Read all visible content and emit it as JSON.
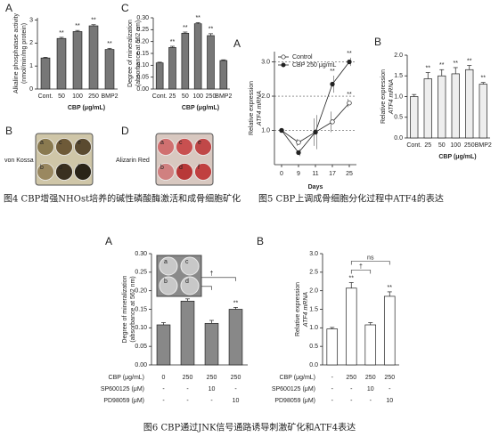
{
  "chart_data": [
    {
      "type": "bar",
      "panel": "A",
      "ylabel": [
        "Alkaline phosphatase activity",
        "(nmol/min/mg protein)"
      ],
      "xlabel": "CBP (μg/mL)",
      "categories": [
        "Cont.",
        "50",
        "100",
        "250",
        "BMP2"
      ],
      "values": [
        1.35,
        2.2,
        2.5,
        2.75,
        1.72
      ],
      "errors": [
        0.03,
        0.05,
        0.05,
        0.05,
        0.05
      ],
      "annotations": [
        null,
        "**",
        "**",
        "**",
        "**"
      ],
      "color": "#777777",
      "ylim": [
        0,
        3.1
      ],
      "yticks": [
        0,
        1,
        2,
        3
      ]
    },
    {
      "type": "bar",
      "panel": "C",
      "ylabel": [
        "Degree of mineralization",
        "(absorbance at 562 nm)"
      ],
      "xlabel": "CBP (μg/mL)",
      "categories": [
        "Cont.",
        "25",
        "50",
        "100",
        "250",
        "BMP2"
      ],
      "values": [
        0.11,
        0.175,
        0.235,
        0.275,
        0.225,
        0.12
      ],
      "errors": [
        0.003,
        0.005,
        0.005,
        0.005,
        0.008,
        0.003
      ],
      "annotations": [
        null,
        "**",
        "**",
        "**",
        "**",
        null
      ],
      "color": "#777777",
      "ylim": [
        0,
        0.3
      ],
      "yticks": [
        {
          "value": 0,
          "label": "0.00"
        },
        {
          "value": 0.05,
          "label": "0.05"
        },
        {
          "value": 0.1,
          "label": "0.10"
        },
        {
          "value": 0.15,
          "label": "0.15"
        },
        {
          "value": 0.2,
          "label": "0.20"
        },
        {
          "value": 0.25,
          "label": "0.25"
        },
        {
          "value": 0.3,
          "label": "0.30"
        }
      ]
    },
    {
      "type": "line",
      "panel": "A",
      "ylabel": [
        "Relative expression",
        "ATF4 mRNA"
      ],
      "xlabel": "Days",
      "categories": [
        "0",
        "9",
        "11",
        "17",
        "25"
      ],
      "legend": "upper left",
      "grid": true,
      "series": [
        {
          "name": "Control",
          "color": "#ffffff",
          "values": [
            1.0,
            0.65,
            0.95,
            1.25,
            1.8
          ],
          "errors": [
            0.05,
            0.1,
            0.4,
            0.3,
            0.12
          ],
          "annotations": [
            null,
            null,
            null,
            null,
            "**"
          ]
        },
        {
          "name": "CBP 250 μg/mL",
          "color": "#222222",
          "values": [
            1.0,
            0.35,
            0.95,
            2.35,
            3.0
          ],
          "errors": [
            0.05,
            0.1,
            0.5,
            0.25,
            0.12
          ],
          "annotations": [
            null,
            null,
            null,
            "**",
            "**"
          ]
        }
      ],
      "ylim": [
        0,
        3.3
      ],
      "yticks": [
        {
          "value": 1,
          "label": "1.0"
        },
        {
          "value": 2,
          "label": "2.0"
        },
        {
          "value": 3,
          "label": "3.0"
        }
      ]
    },
    {
      "type": "bar",
      "panel": "B",
      "ylabel": [
        "Relative expression",
        "ATF4 mRNA"
      ],
      "xlabel": "CBP (μg/mL)",
      "categories": [
        "Cont.",
        "25",
        "50",
        "100",
        "250",
        "BMP2"
      ],
      "values": [
        1.0,
        1.43,
        1.5,
        1.55,
        1.65,
        1.3
      ],
      "errors": [
        0.05,
        0.15,
        0.15,
        0.15,
        0.1,
        0.04
      ],
      "annotations": [
        null,
        "**",
        "**",
        "**",
        "**",
        "**"
      ],
      "color": "#eeeeee",
      "ylim": [
        0,
        2.0
      ],
      "yticks": [
        {
          "value": 0,
          "label": "0.0"
        },
        {
          "value": 0.5,
          "label": "0.5"
        },
        {
          "value": 1,
          "label": "1.0"
        },
        {
          "value": 1.5,
          "label": "1.5"
        },
        {
          "value": 2,
          "label": "2.0"
        }
      ]
    },
    {
      "type": "bar",
      "panel": "A",
      "ylabel": [
        "Degree of mineralization",
        "(absorbance at 562 nm)"
      ],
      "conditions": [
        {
          "name": "CBP (μg/mL)",
          "values": [
            "0",
            "250",
            "250",
            "250"
          ]
        },
        {
          "name": "SP600125 (μM)",
          "values": [
            "-",
            "-",
            "10",
            "-"
          ]
        },
        {
          "name": "PD98059 (μM)",
          "values": [
            "-",
            "-",
            "-",
            "10"
          ]
        }
      ],
      "values": [
        0.108,
        0.172,
        0.112,
        0.15
      ],
      "errors": [
        0.006,
        0.006,
        0.008,
        0.005
      ],
      "annotations": [
        null,
        "**",
        null,
        "**"
      ],
      "brackets": [
        {
          "from": 1,
          "to": 2,
          "label": "†"
        },
        {
          "from": 1,
          "to": 3,
          "label": "†"
        }
      ],
      "color": "#888888",
      "ylim": [
        0,
        0.3
      ],
      "yticks": [
        {
          "value": 0,
          "label": "0.00"
        },
        {
          "value": 0.05,
          "label": "0.05"
        },
        {
          "value": 0.1,
          "label": "0.10"
        },
        {
          "value": 0.15,
          "label": "0.15"
        },
        {
          "value": 0.2,
          "label": "0.20"
        },
        {
          "value": 0.25,
          "label": "0.25"
        },
        {
          "value": 0.3,
          "label": "0.30"
        }
      ],
      "inset_wells": [
        "a",
        "c",
        "b",
        "d"
      ]
    },
    {
      "type": "bar",
      "panel": "B",
      "ylabel": [
        "Relative expression",
        "ATF4 mRNA"
      ],
      "conditions": [
        {
          "name": "CBP (μg/mL)",
          "values": [
            "-",
            "250",
            "250",
            "250"
          ]
        },
        {
          "name": "SP600125 (μM)",
          "values": [
            "-",
            "-",
            "10",
            "-"
          ]
        },
        {
          "name": "PD98059 (μM)",
          "values": [
            "-",
            "-",
            "-",
            "10"
          ]
        }
      ],
      "values": [
        0.97,
        2.07,
        1.08,
        1.85
      ],
      "errors": [
        0.04,
        0.15,
        0.06,
        0.12
      ],
      "annotations": [
        null,
        "**",
        null,
        "**"
      ],
      "brackets": [
        {
          "from": 1,
          "to": 2,
          "label": "†"
        },
        {
          "from": 1,
          "to": 3,
          "label": "ns"
        }
      ],
      "color": "#ffffff",
      "ylim": [
        0,
        3.0
      ],
      "yticks": [
        {
          "value": 0,
          "label": "0.0"
        },
        {
          "value": 0.5,
          "label": "0.5"
        },
        {
          "value": 1,
          "label": "1.0"
        },
        {
          "value": 1.5,
          "label": "1.5"
        },
        {
          "value": 2,
          "label": "2.0"
        },
        {
          "value": 2.5,
          "label": "2.5"
        },
        {
          "value": 3,
          "label": "3.0"
        }
      ]
    }
  ],
  "photos": [
    {
      "panel": "B",
      "label": "von Kossa",
      "wells": [
        "a",
        "c",
        "e",
        "b",
        "d",
        "f"
      ]
    },
    {
      "panel": "D",
      "label": "Alizarin Red",
      "wells": [
        "a",
        "c",
        "e",
        "b",
        "d",
        "f"
      ]
    }
  ],
  "captions": [
    "图4 CBP增强NHOst培养的碱性磷酸酶激活和成骨细胞矿化",
    "图5 CBP上调成骨细胞分化过程中ATF4的表达",
    "图6 CBP通过JNK信号通路诱导刺激矿化和ATF4表达"
  ]
}
